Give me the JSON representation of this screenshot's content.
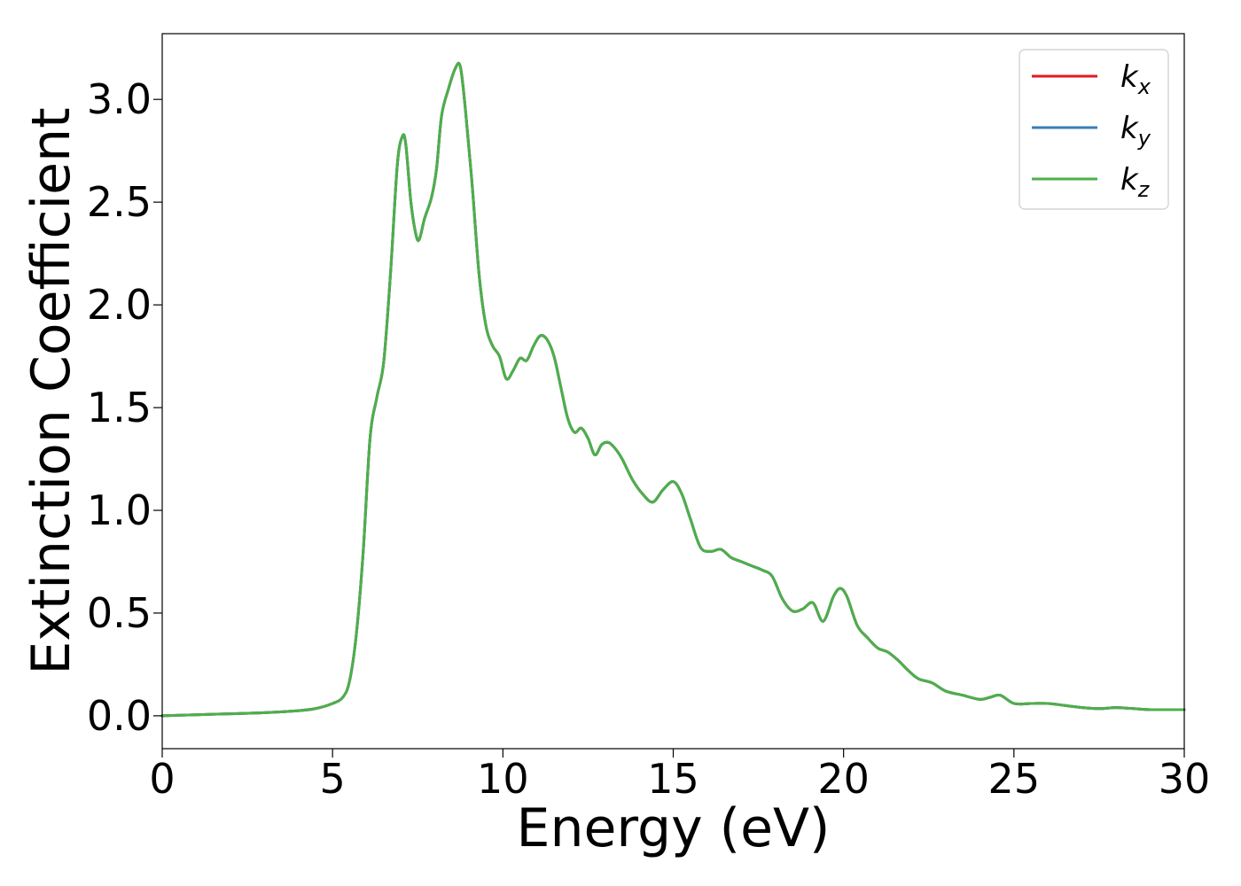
{
  "chart_data": {
    "type": "line",
    "title": "",
    "xlabel": "Energy (eV)",
    "ylabel": "Extinction Coefficient",
    "xlim": [
      0,
      30
    ],
    "ylim": [
      -0.16,
      3.32
    ],
    "xticks": [
      0,
      5,
      10,
      15,
      20,
      25,
      30
    ],
    "xtick_labels": [
      "0",
      "5",
      "10",
      "15",
      "20",
      "25",
      "30"
    ],
    "yticks": [
      0.0,
      0.5,
      1.0,
      1.5,
      2.0,
      2.5,
      3.0
    ],
    "ytick_labels": [
      "0.0",
      "0.5",
      "1.0",
      "1.5",
      "2.0",
      "2.5",
      "3.0"
    ],
    "grid": false,
    "legend": {
      "position": "top-right",
      "entries": [
        {
          "base": "k",
          "sub": "x",
          "color": "#e41a1c"
        },
        {
          "base": "k",
          "sub": "y",
          "color": "#377eb8"
        },
        {
          "base": "k",
          "sub": "z",
          "color": "#4daf4a"
        }
      ]
    },
    "x": [
      0,
      1,
      2,
      3,
      4,
      4.5,
      5,
      5.3,
      5.5,
      5.7,
      5.9,
      6.1,
      6.3,
      6.5,
      6.7,
      6.9,
      7.05,
      7.15,
      7.3,
      7.45,
      7.55,
      7.7,
      7.9,
      8.05,
      8.2,
      8.4,
      8.6,
      8.75,
      8.9,
      9.1,
      9.3,
      9.5,
      9.7,
      9.9,
      10.1,
      10.3,
      10.5,
      10.7,
      10.9,
      11.1,
      11.3,
      11.5,
      11.7,
      11.9,
      12.1,
      12.3,
      12.5,
      12.7,
      12.9,
      13.1,
      13.3,
      13.5,
      13.8,
      14.1,
      14.4,
      14.7,
      15.0,
      15.25,
      15.5,
      15.8,
      16.1,
      16.4,
      16.7,
      17.0,
      17.3,
      17.6,
      17.9,
      18.2,
      18.5,
      18.8,
      19.1,
      19.4,
      19.7,
      19.9,
      20.1,
      20.4,
      20.7,
      21.0,
      21.3,
      21.6,
      21.9,
      22.2,
      22.6,
      23.0,
      23.5,
      24.0,
      24.3,
      24.6,
      25.0,
      25.5,
      26.0,
      26.5,
      27.0,
      27.5,
      28.0,
      28.5,
      29.0,
      29.5,
      30.0
    ],
    "series": [
      {
        "name": "k_x",
        "color": "#e41a1c",
        "values": [
          0.0,
          0.005,
          0.01,
          0.015,
          0.025,
          0.035,
          0.06,
          0.09,
          0.17,
          0.4,
          0.8,
          1.35,
          1.55,
          1.72,
          2.15,
          2.68,
          2.82,
          2.78,
          2.5,
          2.34,
          2.32,
          2.42,
          2.52,
          2.66,
          2.92,
          3.05,
          3.15,
          3.16,
          2.95,
          2.58,
          2.15,
          1.9,
          1.8,
          1.75,
          1.64,
          1.68,
          1.74,
          1.73,
          1.8,
          1.85,
          1.83,
          1.75,
          1.6,
          1.45,
          1.38,
          1.4,
          1.35,
          1.27,
          1.32,
          1.33,
          1.3,
          1.25,
          1.15,
          1.08,
          1.04,
          1.1,
          1.14,
          1.08,
          0.96,
          0.82,
          0.8,
          0.81,
          0.77,
          0.75,
          0.73,
          0.71,
          0.68,
          0.57,
          0.51,
          0.52,
          0.55,
          0.46,
          0.58,
          0.62,
          0.58,
          0.44,
          0.38,
          0.33,
          0.31,
          0.27,
          0.22,
          0.18,
          0.16,
          0.12,
          0.1,
          0.08,
          0.09,
          0.1,
          0.06,
          0.06,
          0.06,
          0.05,
          0.04,
          0.035,
          0.04,
          0.035,
          0.03,
          0.03,
          0.03
        ]
      },
      {
        "name": "k_y",
        "color": "#377eb8",
        "values": [
          0.0,
          0.005,
          0.01,
          0.015,
          0.025,
          0.035,
          0.06,
          0.09,
          0.17,
          0.4,
          0.8,
          1.35,
          1.55,
          1.72,
          2.15,
          2.68,
          2.82,
          2.78,
          2.5,
          2.34,
          2.32,
          2.42,
          2.52,
          2.66,
          2.92,
          3.05,
          3.15,
          3.16,
          2.95,
          2.58,
          2.15,
          1.9,
          1.8,
          1.75,
          1.64,
          1.68,
          1.74,
          1.73,
          1.8,
          1.85,
          1.83,
          1.75,
          1.6,
          1.45,
          1.38,
          1.4,
          1.35,
          1.27,
          1.32,
          1.33,
          1.3,
          1.25,
          1.15,
          1.08,
          1.04,
          1.1,
          1.14,
          1.08,
          0.96,
          0.82,
          0.8,
          0.81,
          0.77,
          0.75,
          0.73,
          0.71,
          0.68,
          0.57,
          0.51,
          0.52,
          0.55,
          0.46,
          0.58,
          0.62,
          0.58,
          0.44,
          0.38,
          0.33,
          0.31,
          0.27,
          0.22,
          0.18,
          0.16,
          0.12,
          0.1,
          0.08,
          0.09,
          0.1,
          0.06,
          0.06,
          0.06,
          0.05,
          0.04,
          0.035,
          0.04,
          0.035,
          0.03,
          0.03,
          0.03
        ]
      },
      {
        "name": "k_z",
        "color": "#4daf4a",
        "values": [
          0.0,
          0.005,
          0.01,
          0.015,
          0.025,
          0.035,
          0.06,
          0.09,
          0.17,
          0.4,
          0.8,
          1.35,
          1.55,
          1.72,
          2.15,
          2.68,
          2.82,
          2.78,
          2.5,
          2.34,
          2.32,
          2.42,
          2.52,
          2.66,
          2.92,
          3.05,
          3.15,
          3.16,
          2.95,
          2.58,
          2.15,
          1.9,
          1.8,
          1.75,
          1.64,
          1.68,
          1.74,
          1.73,
          1.8,
          1.85,
          1.83,
          1.75,
          1.6,
          1.45,
          1.38,
          1.4,
          1.35,
          1.27,
          1.32,
          1.33,
          1.3,
          1.25,
          1.15,
          1.08,
          1.04,
          1.1,
          1.14,
          1.08,
          0.96,
          0.82,
          0.8,
          0.81,
          0.77,
          0.75,
          0.73,
          0.71,
          0.68,
          0.57,
          0.51,
          0.52,
          0.55,
          0.46,
          0.58,
          0.62,
          0.58,
          0.44,
          0.38,
          0.33,
          0.31,
          0.27,
          0.22,
          0.18,
          0.16,
          0.12,
          0.1,
          0.08,
          0.09,
          0.1,
          0.06,
          0.06,
          0.06,
          0.05,
          0.04,
          0.035,
          0.04,
          0.035,
          0.03,
          0.03,
          0.03
        ]
      }
    ]
  }
}
